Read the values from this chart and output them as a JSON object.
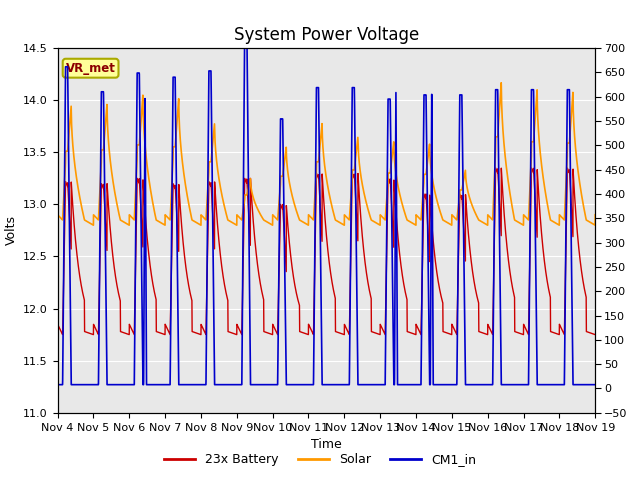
{
  "title": "System Power Voltage",
  "xlabel": "Time",
  "ylabel": "Volts",
  "ylim_left": [
    11.0,
    14.5
  ],
  "ylim_right": [
    -50,
    700
  ],
  "yticks_left": [
    11.0,
    11.5,
    12.0,
    12.5,
    13.0,
    13.5,
    14.0,
    14.5
  ],
  "yticks_right": [
    -50,
    0,
    50,
    100,
    150,
    200,
    250,
    300,
    350,
    400,
    450,
    500,
    550,
    600,
    650,
    700
  ],
  "xtick_labels": [
    "Nov 4",
    "Nov 5",
    "Nov 6",
    "Nov 7",
    "Nov 8",
    "Nov 9",
    "Nov 10",
    "Nov 11",
    "Nov 12",
    "Nov 13",
    "Nov 14",
    "Nov 15",
    "Nov 16",
    "Nov 17",
    "Nov 18",
    "Nov 19"
  ],
  "legend_labels": [
    "23x Battery",
    "Solar",
    "CM1_in"
  ],
  "legend_colors": [
    "#cc0000",
    "#ff9900",
    "#0000cc"
  ],
  "vr_met_text": "VR_met",
  "background_color": "#ffffff",
  "plot_bg_color": "#e8e8e8",
  "grid_color": "#ffffff",
  "title_fontsize": 12,
  "axis_fontsize": 9,
  "tick_fontsize": 8
}
